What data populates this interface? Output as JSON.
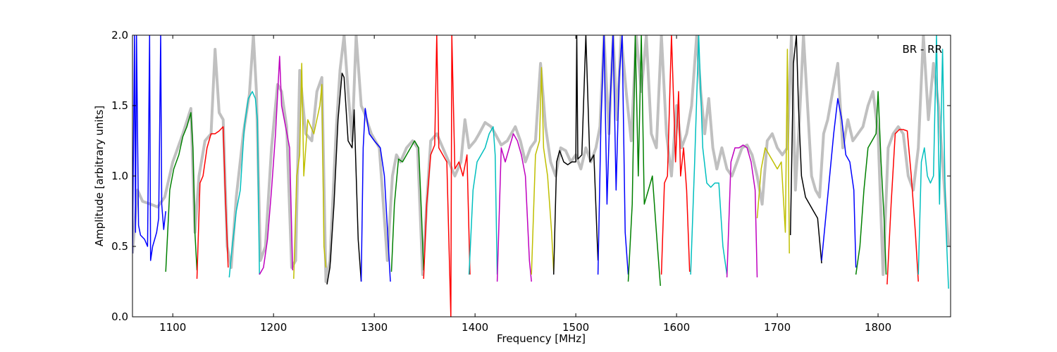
{
  "chart_data": {
    "type": "line",
    "title": "",
    "annotation": "BR - RR",
    "xlabel": "Frequency [MHz]",
    "ylabel": "Amplitude [arbitrary units]",
    "xlim": [
      1060,
      1872
    ],
    "ylim": [
      0.0,
      2.0
    ],
    "xticks": [
      1100,
      1200,
      1300,
      1400,
      1500,
      1600,
      1700,
      1800
    ],
    "xtick_labels": [
      "1100",
      "1200",
      "1300",
      "1400",
      "1500",
      "1600",
      "1700",
      "1800"
    ],
    "yticks": [
      0.0,
      0.5,
      1.0,
      1.5,
      2.0
    ],
    "ytick_labels": [
      "0.0",
      "0.5",
      "1.0",
      "1.5",
      "2.0"
    ],
    "grid": false,
    "colors": {
      "background_series": "#c0c0c0",
      "b": "#0000ff",
      "g": "#008000",
      "r": "#ff0000",
      "c": "#00bfbf",
      "m": "#bf00bf",
      "y": "#bfbf00",
      "k": "#000000"
    },
    "background_series": {
      "name": "",
      "x": [
        1060,
        1065,
        1070,
        1078,
        1085,
        1092,
        1100,
        1110,
        1118,
        1122,
        1126,
        1132,
        1138,
        1142,
        1146,
        1150,
        1154,
        1158,
        1163,
        1170,
        1176,
        1180,
        1183,
        1187,
        1192,
        1198,
        1204,
        1208,
        1213,
        1218,
        1222,
        1226,
        1232,
        1238,
        1243,
        1248,
        1252,
        1256,
        1262,
        1266,
        1270,
        1274,
        1278,
        1282,
        1287,
        1290,
        1297,
        1305,
        1313,
        1318,
        1322,
        1326,
        1332,
        1338,
        1343,
        1348,
        1352,
        1356,
        1362,
        1368,
        1374,
        1380,
        1386,
        1390,
        1394,
        1400,
        1404,
        1410,
        1416,
        1420,
        1426,
        1432,
        1436,
        1440,
        1445,
        1450,
        1455,
        1460,
        1465,
        1470,
        1475,
        1480,
        1485,
        1490,
        1495,
        1500,
        1505,
        1510,
        1515,
        1520,
        1524,
        1528,
        1533,
        1537,
        1541,
        1545,
        1550,
        1555,
        1560,
        1565,
        1570,
        1575,
        1580,
        1585,
        1590,
        1595,
        1600,
        1605,
        1610,
        1615,
        1620,
        1624,
        1628,
        1632,
        1636,
        1640,
        1645,
        1650,
        1655,
        1660,
        1665,
        1670,
        1675,
        1680,
        1685,
        1690,
        1695,
        1700,
        1705,
        1710,
        1714,
        1718,
        1722,
        1726,
        1730,
        1734,
        1738,
        1742,
        1746,
        1750,
        1755,
        1760,
        1765,
        1770,
        1775,
        1780,
        1785,
        1790,
        1795,
        1800,
        1805,
        1810,
        1815,
        1820,
        1825,
        1830,
        1835,
        1840,
        1845,
        1850,
        1855,
        1860,
        1865,
        1870
      ],
      "y": [
        0.45,
        0.9,
        0.82,
        0.8,
        0.78,
        0.85,
        1.1,
        1.3,
        1.48,
        0.6,
        1.0,
        1.25,
        1.3,
        1.9,
        1.45,
        1.4,
        0.5,
        0.35,
        0.85,
        1.3,
        1.58,
        2.0,
        1.6,
        0.4,
        0.5,
        1.2,
        1.65,
        1.6,
        1.35,
        0.35,
        0.4,
        1.75,
        1.3,
        1.25,
        1.6,
        1.7,
        0.25,
        0.4,
        1.3,
        1.75,
        2.0,
        1.6,
        1.25,
        2.0,
        1.5,
        1.45,
        1.3,
        1.2,
        0.4,
        1.0,
        1.15,
        1.1,
        1.2,
        1.25,
        1.2,
        0.3,
        0.8,
        1.25,
        1.3,
        1.2,
        1.1,
        1.0,
        1.1,
        1.4,
        1.2,
        1.25,
        1.3,
        1.38,
        1.35,
        1.3,
        1.22,
        1.25,
        1.3,
        1.35,
        1.25,
        1.1,
        1.2,
        1.25,
        1.8,
        1.35,
        1.1,
        1.0,
        1.2,
        1.18,
        1.1,
        1.15,
        1.05,
        1.2,
        1.1,
        1.2,
        1.35,
        2.0,
        1.3,
        2.0,
        1.4,
        2.0,
        1.6,
        1.25,
        2.0,
        1.6,
        2.0,
        1.3,
        1.2,
        2.0,
        1.3,
        1.0,
        1.5,
        1.2,
        1.3,
        1.5,
        2.0,
        1.6,
        1.3,
        1.55,
        1.2,
        1.05,
        1.2,
        1.05,
        1.0,
        1.1,
        1.2,
        1.22,
        1.15,
        1.0,
        0.8,
        1.25,
        1.3,
        1.2,
        1.15,
        1.2,
        2.0,
        0.9,
        1.4,
        2.0,
        1.5,
        1.0,
        0.9,
        0.85,
        1.3,
        1.4,
        1.6,
        1.8,
        1.2,
        1.4,
        1.25,
        1.3,
        1.35,
        1.5,
        1.6,
        1.3,
        0.3,
        1.2,
        1.3,
        1.35,
        1.3,
        1.0,
        0.9,
        1.2,
        2.0,
        1.4,
        1.8,
        1.5,
        1.0,
        0.5
      ]
    },
    "series": [
      {
        "color": "b",
        "x": [
          1060,
          1062,
          1063,
          1064,
          1066,
          1068,
          1072,
          1075,
          1077,
          1078,
          1080,
          1082,
          1084,
          1086,
          1088,
          1089,
          1091,
          1093
        ],
        "y": [
          0.45,
          2.0,
          0.6,
          2.0,
          0.65,
          0.58,
          0.55,
          0.5,
          2.0,
          0.4,
          0.5,
          0.55,
          0.6,
          0.7,
          2.0,
          0.8,
          0.62,
          0.75
        ]
      },
      {
        "color": "g",
        "x": [
          1093,
          1097,
          1101,
          1106,
          1110,
          1114,
          1118,
          1120,
          1122,
          1124
        ],
        "y": [
          0.32,
          0.9,
          1.05,
          1.15,
          1.28,
          1.35,
          1.45,
          1.2,
          0.6,
          0.33
        ]
      },
      {
        "color": "r",
        "x": [
          1124,
          1127,
          1130,
          1134,
          1138,
          1142,
          1146,
          1150,
          1152,
          1155
        ],
        "y": [
          0.27,
          0.95,
          1.0,
          1.2,
          1.3,
          1.3,
          1.32,
          1.35,
          0.9,
          0.35
        ]
      },
      {
        "color": "c",
        "x": [
          1156,
          1159,
          1163,
          1167,
          1171,
          1175,
          1179,
          1182,
          1184,
          1186
        ],
        "y": [
          0.28,
          0.5,
          0.75,
          0.9,
          1.35,
          1.55,
          1.6,
          1.55,
          1.4,
          0.3
        ]
      },
      {
        "color": "m",
        "x": [
          1186,
          1190,
          1194,
          1198,
          1202,
          1206,
          1208,
          1212,
          1216,
          1219
        ],
        "y": [
          0.3,
          0.35,
          0.55,
          0.9,
          1.3,
          1.85,
          1.5,
          1.35,
          1.2,
          0.33
        ]
      },
      {
        "color": "y",
        "x": [
          1220,
          1223,
          1226,
          1228,
          1230,
          1234,
          1240,
          1246,
          1248,
          1250,
          1252
        ],
        "y": [
          0.27,
          1.0,
          1.15,
          1.8,
          1.0,
          1.4,
          1.3,
          1.5,
          1.65,
          0.5,
          0.35
        ]
      },
      {
        "color": "k",
        "x": [
          1253,
          1256,
          1260,
          1264,
          1268,
          1270,
          1274,
          1278,
          1280,
          1284,
          1287
        ],
        "y": [
          0.23,
          0.35,
          0.8,
          1.4,
          1.73,
          1.7,
          1.25,
          1.2,
          1.47,
          0.55,
          0.25
        ]
      },
      {
        "color": "b",
        "x": [
          1287,
          1289,
          1291,
          1295,
          1300,
          1306,
          1310,
          1314,
          1316
        ],
        "y": [
          0.25,
          1.2,
          1.48,
          1.3,
          1.25,
          1.2,
          1.0,
          0.5,
          0.25
        ]
      },
      {
        "color": "g",
        "x": [
          1317,
          1320,
          1324,
          1328,
          1332,
          1336,
          1340,
          1344,
          1347,
          1349
        ],
        "y": [
          0.32,
          0.8,
          1.12,
          1.1,
          1.15,
          1.2,
          1.25,
          1.2,
          0.7,
          0.33
        ]
      },
      {
        "color": "r",
        "x": [
          1349,
          1352,
          1356,
          1360,
          1362,
          1364,
          1368,
          1372,
          1376,
          1377,
          1380,
          1384,
          1388,
          1392,
          1395
        ],
        "y": [
          0.27,
          0.8,
          1.15,
          1.22,
          2.0,
          1.2,
          1.15,
          1.1,
          0.0,
          2.0,
          1.05,
          1.1,
          1.0,
          1.15,
          0.3
        ]
      },
      {
        "color": "c",
        "x": [
          1394,
          1398,
          1402,
          1406,
          1410,
          1414,
          1418,
          1420,
          1422
        ],
        "y": [
          0.3,
          0.9,
          1.1,
          1.15,
          1.2,
          1.3,
          1.35,
          1.15,
          0.3
        ]
      },
      {
        "color": "m",
        "x": [
          1422,
          1426,
          1430,
          1434,
          1438,
          1442,
          1446,
          1450,
          1454,
          1456
        ],
        "y": [
          0.25,
          1.2,
          1.1,
          1.2,
          1.3,
          1.25,
          1.15,
          1.0,
          0.4,
          0.25
        ]
      },
      {
        "color": "y",
        "x": [
          1456,
          1460,
          1464,
          1466,
          1468,
          1472,
          1476,
          1478
        ],
        "y": [
          0.3,
          1.15,
          1.25,
          1.77,
          1.2,
          1.0,
          0.6,
          0.32
        ]
      },
      {
        "color": "k",
        "x": [
          1478,
          1481,
          1484,
          1488,
          1492,
          1496,
          1500,
          1501,
          1502,
          1506,
          1510,
          1514,
          1518,
          1522
        ],
        "y": [
          0.3,
          1.1,
          1.18,
          1.1,
          1.08,
          1.1,
          1.1,
          2.0,
          1.12,
          1.15,
          2.0,
          1.1,
          1.15,
          0.4
        ]
      },
      {
        "color": "b",
        "x": [
          1522,
          1525,
          1528,
          1531,
          1534,
          1537,
          1540,
          1543,
          1546,
          1549,
          1552
        ],
        "y": [
          0.3,
          1.4,
          2.0,
          0.8,
          1.5,
          2.0,
          0.9,
          1.7,
          2.0,
          0.6,
          0.3
        ]
      },
      {
        "color": "g",
        "x": [
          1552,
          1556,
          1559,
          1562,
          1565,
          1568,
          1572,
          1576,
          1580,
          1584
        ],
        "y": [
          0.25,
          0.8,
          2.0,
          1.0,
          2.0,
          0.8,
          0.9,
          1.0,
          0.6,
          0.22
        ]
      },
      {
        "color": "r",
        "x": [
          1585,
          1588,
          1591,
          1595,
          1599,
          1602,
          1604,
          1607,
          1610,
          1613
        ],
        "y": [
          0.3,
          0.95,
          1.0,
          2.0,
          1.1,
          1.6,
          1.0,
          1.2,
          0.9,
          0.32
        ]
      },
      {
        "color": "c",
        "x": [
          1614,
          1618,
          1622,
          1626,
          1630,
          1634,
          1638,
          1642,
          1646,
          1650
        ],
        "y": [
          0.3,
          1.1,
          2.0,
          1.2,
          0.95,
          0.92,
          0.95,
          0.95,
          0.5,
          0.3
        ]
      },
      {
        "color": "m",
        "x": [
          1650,
          1654,
          1658,
          1662,
          1666,
          1670,
          1674,
          1678,
          1680
        ],
        "y": [
          0.28,
          1.1,
          1.2,
          1.2,
          1.22,
          1.2,
          1.1,
          0.9,
          0.28
        ]
      },
      {
        "color": "y",
        "x": [
          1680,
          1684,
          1688,
          1692,
          1696,
          1700,
          1704,
          1708,
          1710,
          1712
        ],
        "y": [
          0.7,
          1.05,
          1.2,
          1.15,
          1.1,
          1.05,
          1.1,
          0.6,
          1.9,
          0.45
        ]
      },
      {
        "color": "k",
        "x": [
          1713,
          1716,
          1719,
          1721,
          1724,
          1728,
          1732,
          1736,
          1740,
          1744
        ],
        "y": [
          0.58,
          1.8,
          2.0,
          1.5,
          1.0,
          0.85,
          0.8,
          0.75,
          0.7,
          0.38
        ]
      },
      {
        "color": "b",
        "x": [
          1744,
          1748,
          1752,
          1756,
          1760,
          1764,
          1768,
          1772,
          1776,
          1778
        ],
        "y": [
          0.4,
          0.7,
          1.0,
          1.3,
          1.55,
          1.4,
          1.15,
          1.1,
          0.9,
          0.35
        ]
      },
      {
        "color": "g",
        "x": [
          1778,
          1782,
          1786,
          1790,
          1794,
          1798,
          1800,
          1803,
          1806,
          1808
        ],
        "y": [
          0.3,
          0.5,
          0.9,
          1.2,
          1.25,
          1.3,
          1.6,
          1.1,
          0.7,
          0.3
        ]
      },
      {
        "color": "r",
        "x": [
          1809,
          1813,
          1817,
          1821,
          1825,
          1829,
          1833,
          1837,
          1840
        ],
        "y": [
          0.23,
          0.8,
          1.3,
          1.33,
          1.33,
          1.32,
          1.0,
          0.6,
          0.25
        ]
      },
      {
        "color": "c",
        "x": [
          1840,
          1843,
          1846,
          1849,
          1852,
          1855,
          1858,
          1861,
          1864,
          1867,
          1870
        ],
        "y": [
          0.3,
          1.1,
          1.2,
          1.0,
          0.95,
          1.0,
          2.0,
          0.8,
          1.9,
          0.7,
          0.2
        ]
      }
    ]
  }
}
